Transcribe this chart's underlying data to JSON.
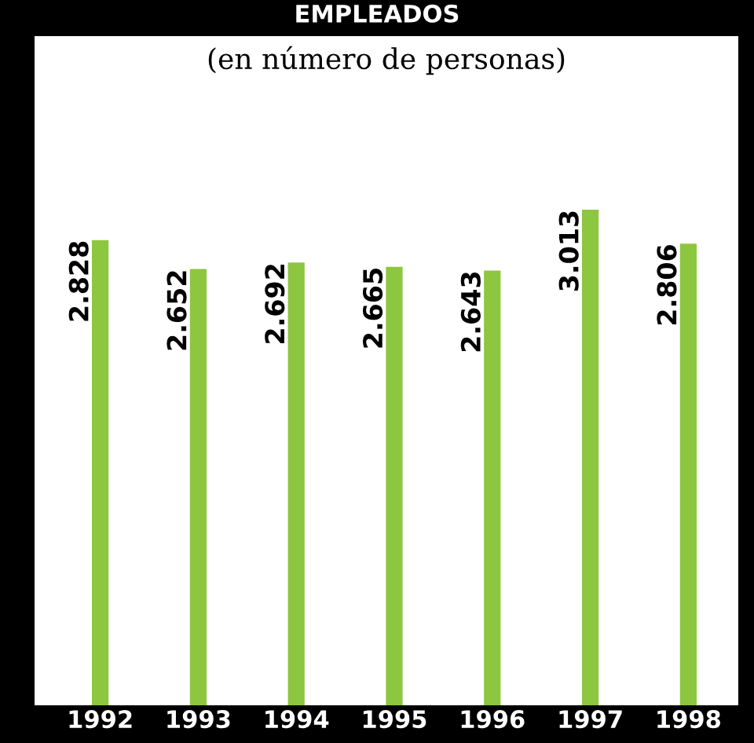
{
  "chart_data": {
    "type": "bar",
    "title": "EMPLEADOS",
    "subtitle": "(en número de personas)",
    "categories": [
      "1992",
      "1993",
      "1994",
      "1995",
      "1996",
      "1997",
      "1998"
    ],
    "values": [
      2828,
      2652,
      2692,
      2665,
      2643,
      3013,
      2806
    ],
    "value_labels": [
      "2.828",
      "2.652",
      "2.692",
      "2.665",
      "2.643",
      "3.013",
      "2.806"
    ],
    "color": "#8dc63f",
    "tick_labels": "x",
    "grid": false,
    "legend": false
  }
}
